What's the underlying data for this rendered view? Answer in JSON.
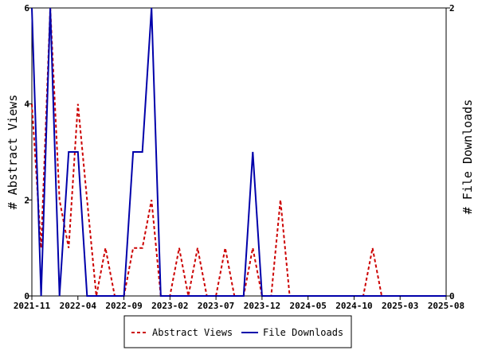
{
  "chart_data": {
    "type": "line",
    "x_ticks": [
      "2021-11",
      "2022-04",
      "2022-09",
      "2023-02",
      "2023-07",
      "2023-12",
      "2024-05",
      "2024-10",
      "2025-03",
      "2025-08"
    ],
    "x_range": [
      "2021-11",
      "2025-08"
    ],
    "y_left": {
      "label": "# Abstract Views",
      "range": [
        0,
        6
      ],
      "ticks": [
        "0",
        "2",
        "4",
        "6"
      ]
    },
    "y_right": {
      "label": "# File Downloads",
      "range": [
        0,
        2
      ],
      "ticks": [
        "0",
        "2"
      ]
    },
    "legend_position": "bottom-center",
    "grid": false,
    "series": [
      {
        "name": "Abstract Views",
        "axis": "left",
        "color": "#cc0000",
        "style": "dashed",
        "points": [
          [
            "2021-11",
            4
          ],
          [
            "2021-12",
            1
          ],
          [
            "2022-01",
            6
          ],
          [
            "2022-02",
            2
          ],
          [
            "2022-03",
            1
          ],
          [
            "2022-04",
            4
          ],
          [
            "2022-05",
            2
          ],
          [
            "2022-06",
            0
          ],
          [
            "2022-07",
            1
          ],
          [
            "2022-08",
            0
          ],
          [
            "2022-09",
            0
          ],
          [
            "2022-10",
            1
          ],
          [
            "2022-11",
            1
          ],
          [
            "2022-12",
            2
          ],
          [
            "2023-01",
            0
          ],
          [
            "2023-02",
            0
          ],
          [
            "2023-03",
            1
          ],
          [
            "2023-04",
            0
          ],
          [
            "2023-05",
            1
          ],
          [
            "2023-06",
            0
          ],
          [
            "2023-07",
            0
          ],
          [
            "2023-08",
            1
          ],
          [
            "2023-09",
            0
          ],
          [
            "2023-10",
            0
          ],
          [
            "2023-11",
            1
          ],
          [
            "2023-12",
            0
          ],
          [
            "2024-01",
            0
          ],
          [
            "2024-02",
            2
          ],
          [
            "2024-03",
            0
          ],
          [
            "2024-04",
            0
          ],
          [
            "2024-05",
            0
          ],
          [
            "2024-06",
            0
          ],
          [
            "2024-07",
            0
          ],
          [
            "2024-08",
            0
          ],
          [
            "2024-09",
            0
          ],
          [
            "2024-10",
            0
          ],
          [
            "2024-11",
            0
          ],
          [
            "2024-12",
            1
          ],
          [
            "2025-01",
            0
          ],
          [
            "2025-02",
            0
          ],
          [
            "2025-03",
            0
          ],
          [
            "2025-04",
            0
          ],
          [
            "2025-05",
            0
          ],
          [
            "2025-06",
            0
          ],
          [
            "2025-07",
            0
          ],
          [
            "2025-08",
            0
          ]
        ]
      },
      {
        "name": "File Downloads",
        "axis": "right",
        "color": "#0000aa",
        "style": "solid",
        "points": [
          [
            "2021-11",
            2
          ],
          [
            "2021-12",
            0
          ],
          [
            "2022-01",
            2
          ],
          [
            "2022-02",
            0
          ],
          [
            "2022-03",
            1
          ],
          [
            "2022-04",
            1
          ],
          [
            "2022-05",
            0
          ],
          [
            "2022-06",
            0
          ],
          [
            "2022-07",
            0
          ],
          [
            "2022-08",
            0
          ],
          [
            "2022-09",
            0
          ],
          [
            "2022-10",
            1
          ],
          [
            "2022-11",
            1
          ],
          [
            "2022-12",
            2
          ],
          [
            "2023-01",
            0
          ],
          [
            "2023-02",
            0
          ],
          [
            "2023-03",
            0
          ],
          [
            "2023-04",
            0
          ],
          [
            "2023-05",
            0
          ],
          [
            "2023-06",
            0
          ],
          [
            "2023-07",
            0
          ],
          [
            "2023-08",
            0
          ],
          [
            "2023-09",
            0
          ],
          [
            "2023-10",
            0
          ],
          [
            "2023-11",
            1
          ],
          [
            "2023-12",
            0
          ],
          [
            "2024-01",
            0
          ],
          [
            "2024-02",
            0
          ],
          [
            "2024-03",
            0
          ],
          [
            "2024-04",
            0
          ],
          [
            "2024-05",
            0
          ],
          [
            "2024-06",
            0
          ],
          [
            "2024-07",
            0
          ],
          [
            "2024-08",
            0
          ],
          [
            "2024-09",
            0
          ],
          [
            "2024-10",
            0
          ],
          [
            "2024-11",
            0
          ],
          [
            "2024-12",
            0
          ],
          [
            "2025-01",
            0
          ],
          [
            "2025-02",
            0
          ],
          [
            "2025-03",
            0
          ],
          [
            "2025-04",
            0
          ],
          [
            "2025-05",
            0
          ],
          [
            "2025-06",
            0
          ],
          [
            "2025-07",
            0
          ],
          [
            "2025-08",
            0
          ]
        ]
      }
    ]
  }
}
